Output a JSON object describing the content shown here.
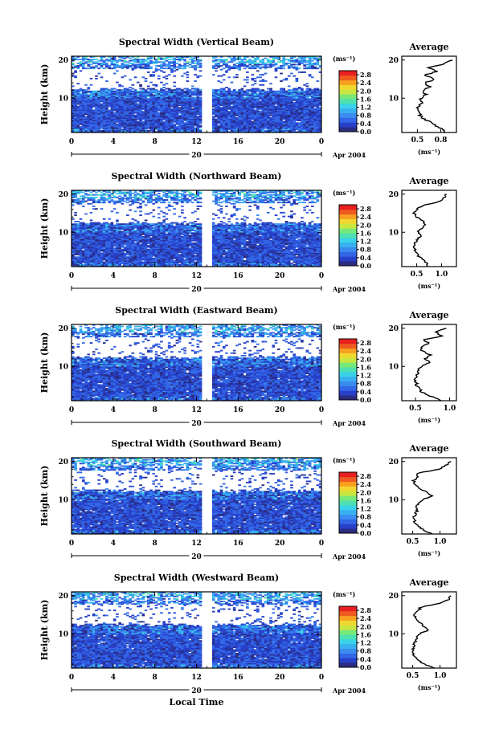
{
  "chart_data": {
    "type": "heatmap",
    "date_label": "Apr 2004",
    "day_marker": "20",
    "x_axis": {
      "label": "Local Time",
      "ticks": [
        "0",
        "4",
        "8",
        "12",
        "16",
        "20",
        "0"
      ],
      "range_hours": [
        0,
        24
      ]
    },
    "y_axis": {
      "label": "Height (km)",
      "ticks": [
        "10",
        "20"
      ],
      "range_km": [
        1,
        21
      ]
    },
    "colorbar": {
      "unit": "(ms⁻¹)",
      "ticks": [
        "2.8",
        "2.4",
        "2.0",
        "1.6",
        "1.2",
        "0.8",
        "0.4",
        "0.0"
      ],
      "range": [
        0,
        3.0
      ],
      "colors": [
        "#2b2b80",
        "#2740c8",
        "#3266e6",
        "#3a8cf0",
        "#38b0f0",
        "#3ad2e8",
        "#4ee0b0",
        "#78e878",
        "#c8e640",
        "#f0d830",
        "#f8a020",
        "#f05a20",
        "#e82020"
      ]
    },
    "panels": [
      {
        "title": "Spectral Width (Vertical Beam)",
        "avg_title": "Average",
        "avg_xticks": [
          "0.5",
          "0.8"
        ],
        "avg_xlim": [
          0.3,
          1.0
        ],
        "avg_xlabel": "(ms⁻¹)",
        "avg_profile": [
          [
            1,
            0.85
          ],
          [
            2,
            0.82
          ],
          [
            3,
            0.72
          ],
          [
            4,
            0.64
          ],
          [
            5,
            0.56
          ],
          [
            6,
            0.52
          ],
          [
            7,
            0.5
          ],
          [
            8,
            0.52
          ],
          [
            9,
            0.56
          ],
          [
            10,
            0.54
          ],
          [
            11,
            0.6
          ],
          [
            12,
            0.58
          ],
          [
            13,
            0.65
          ],
          [
            14,
            0.6
          ],
          [
            15,
            0.72
          ],
          [
            16,
            0.58
          ],
          [
            17,
            0.75
          ],
          [
            18,
            0.65
          ],
          [
            19,
            0.85
          ],
          [
            20,
            0.95
          ]
        ]
      },
      {
        "title": "Spectral Width (Northward Beam)",
        "avg_title": "Average",
        "avg_xticks": [
          "0.5",
          "1.0"
        ],
        "avg_xlim": [
          0.2,
          1.3
        ],
        "avg_xlabel": "(ms⁻¹)",
        "avg_profile": [
          [
            1,
            0.72
          ],
          [
            2,
            0.7
          ],
          [
            3,
            0.6
          ],
          [
            4,
            0.52
          ],
          [
            5,
            0.48
          ],
          [
            6,
            0.45
          ],
          [
            7,
            0.47
          ],
          [
            8,
            0.5
          ],
          [
            9,
            0.58
          ],
          [
            10,
            0.52
          ],
          [
            11,
            0.6
          ],
          [
            12,
            0.65
          ],
          [
            13,
            0.62
          ],
          [
            14,
            0.5
          ],
          [
            15,
            0.45
          ],
          [
            16,
            0.5
          ],
          [
            17,
            0.62
          ],
          [
            18,
            0.95
          ],
          [
            19,
            1.05
          ],
          [
            20,
            1.1
          ]
        ]
      },
      {
        "title": "Spectral Width (Eastward Beam)",
        "avg_title": "Average",
        "avg_xticks": [
          "0.5",
          "1.0"
        ],
        "avg_xlim": [
          0.3,
          1.1
        ],
        "avg_xlabel": "(ms⁻¹)",
        "avg_profile": [
          [
            1,
            0.9
          ],
          [
            2,
            0.75
          ],
          [
            3,
            0.62
          ],
          [
            4,
            0.56
          ],
          [
            5,
            0.52
          ],
          [
            6,
            0.5
          ],
          [
            7,
            0.5
          ],
          [
            8,
            0.52
          ],
          [
            9,
            0.55
          ],
          [
            10,
            0.6
          ],
          [
            11,
            0.7
          ],
          [
            12,
            0.65
          ],
          [
            13,
            0.72
          ],
          [
            14,
            0.6
          ],
          [
            15,
            0.58
          ],
          [
            16,
            0.7
          ],
          [
            17,
            0.62
          ],
          [
            18,
            0.9
          ],
          [
            19,
            0.8
          ],
          [
            20,
            0.95
          ]
        ]
      },
      {
        "title": "Spectral Width (Southward Beam)",
        "avg_title": "Average",
        "avg_xticks": [
          "0.5",
          "1.0"
        ],
        "avg_xlim": [
          0.3,
          1.3
        ],
        "avg_xlabel": "(ms⁻¹)",
        "avg_profile": [
          [
            1,
            0.85
          ],
          [
            2,
            0.72
          ],
          [
            3,
            0.6
          ],
          [
            4,
            0.55
          ],
          [
            5,
            0.52
          ],
          [
            6,
            0.54
          ],
          [
            7,
            0.58
          ],
          [
            8,
            0.55
          ],
          [
            9,
            0.6
          ],
          [
            10,
            0.68
          ],
          [
            11,
            0.85
          ],
          [
            12,
            0.75
          ],
          [
            13,
            0.62
          ],
          [
            14,
            0.55
          ],
          [
            15,
            0.52
          ],
          [
            16,
            0.58
          ],
          [
            17,
            0.6
          ],
          [
            18,
            1.0
          ],
          [
            19,
            1.1
          ],
          [
            20,
            1.2
          ]
        ]
      },
      {
        "title": "Spectral Width (Westward Beam)",
        "avg_title": "Average",
        "avg_xticks": [
          "0.5",
          "1.0"
        ],
        "avg_xlim": [
          0.3,
          1.3
        ],
        "avg_xlabel": "(ms⁻¹)",
        "avg_profile": [
          [
            1,
            0.88
          ],
          [
            2,
            0.72
          ],
          [
            3,
            0.6
          ],
          [
            4,
            0.54
          ],
          [
            5,
            0.5
          ],
          [
            6,
            0.5
          ],
          [
            7,
            0.52
          ],
          [
            8,
            0.55
          ],
          [
            9,
            0.58
          ],
          [
            10,
            0.62
          ],
          [
            11,
            0.78
          ],
          [
            12,
            0.7
          ],
          [
            13,
            0.62
          ],
          [
            14,
            0.55
          ],
          [
            15,
            0.52
          ],
          [
            16,
            0.6
          ],
          [
            17,
            0.65
          ],
          [
            18,
            1.0
          ],
          [
            19,
            1.15
          ],
          [
            20,
            1.2
          ]
        ]
      }
    ]
  }
}
